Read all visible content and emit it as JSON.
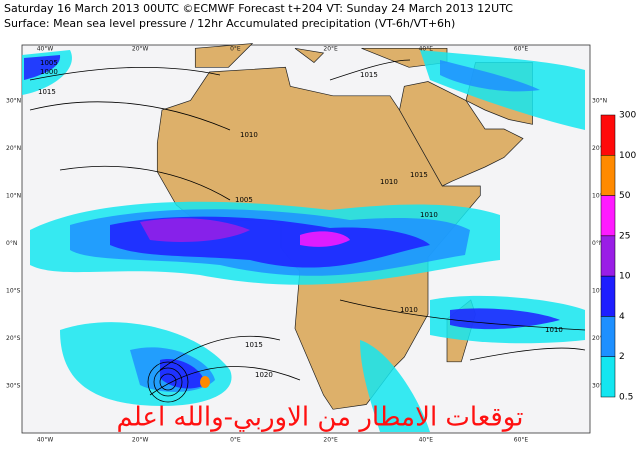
{
  "header": {
    "line1": "Saturday 16 March 2013 00UTC ©ECMWF Forecast t+204 VT: Sunday 24 March 2013 12UTC",
    "line2": "Surface: Mean sea level pressure / 12hr Accumulated precipitation (VT-6h/VT+6h)"
  },
  "map": {
    "lon_labels": [
      "40°W",
      "20°W",
      "0°E",
      "20°E",
      "40°E",
      "60°E"
    ],
    "lat_labels": [
      "30°N",
      "20°N",
      "10°N",
      "0°N",
      "10°S",
      "20°S",
      "30°S"
    ],
    "isobar_labels": [
      "1000",
      "1005",
      "1015",
      "1015",
      "1010",
      "1005",
      "1010",
      "1015",
      "1010",
      "1010",
      "1015",
      "1020",
      "1010"
    ]
  },
  "colorbar": {
    "labels": [
      "300",
      "100",
      "50",
      "25",
      "10",
      "4",
      "2",
      "0.5"
    ],
    "colors": [
      "#ff0a0a",
      "#ff8a00",
      "#ff1aff",
      "#9a1ee6",
      "#1e1eff",
      "#1e90ff",
      "#14e6f0"
    ]
  },
  "overlay": "توقعات الامطار من الاوربي-والله اعلم"
}
